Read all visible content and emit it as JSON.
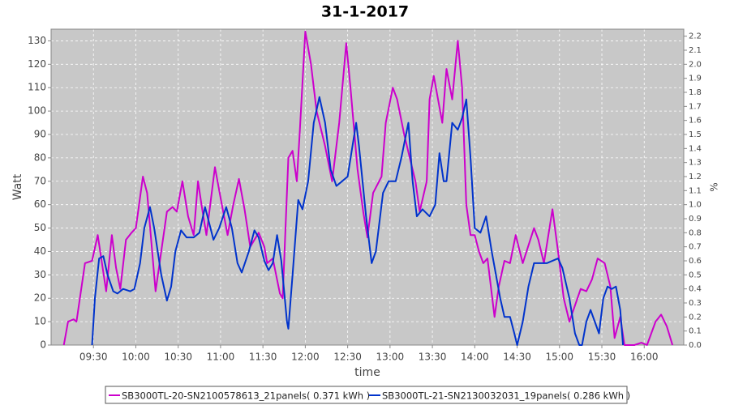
{
  "chart_data": {
    "type": "line",
    "title": "31-1-2017",
    "xlabel": "time",
    "ylabel": "Watt",
    "y2label": "%",
    "xlim": [
      "09:00",
      "16:28"
    ],
    "xticks": [
      "09:30",
      "10:00",
      "10:30",
      "11:00",
      "11:30",
      "12:00",
      "12:30",
      "13:00",
      "13:30",
      "14:00",
      "14:30",
      "15:00",
      "15:30",
      "16:00"
    ],
    "ylim": [
      0,
      135
    ],
    "yticks": [
      0,
      10,
      20,
      30,
      40,
      50,
      60,
      70,
      80,
      90,
      100,
      110,
      120,
      130
    ],
    "y2lim": [
      0,
      2.25
    ],
    "y2ticks": [
      {
        "value": 0,
        "label": "0.0"
      },
      0.1,
      0.2,
      0.3,
      0.4,
      0.5,
      0.6,
      0.7,
      0.8,
      0.9,
      {
        "value": 1,
        "label": "1.0"
      },
      1.1,
      1.2,
      1.3,
      1.4,
      1.5,
      1.6,
      1.7,
      1.8,
      1.9,
      {
        "value": 2,
        "label": "2.0"
      },
      2.1,
      2.2
    ],
    "grid": true,
    "legend": "bottom",
    "series": [
      {
        "name": "SB3000TL-20-SN2100578613_21panels( 0.371 kWh )",
        "color": "#cc00cc",
        "x": [
          "09:09",
          "09:12",
          "09:16",
          "09:18",
          "09:24",
          "09:29",
          "09:33",
          "09:36",
          "09:39",
          "09:43",
          "09:46",
          "09:49",
          "09:53",
          "09:57",
          "10:00",
          "10:05",
          "10:08",
          "10:14",
          "10:18",
          "10:22",
          "10:26",
          "10:29",
          "10:33",
          "10:37",
          "10:41",
          "10:44",
          "10:47",
          "10:50",
          "10:56",
          "11:00",
          "11:05",
          "11:09",
          "11:13",
          "11:17",
          "11:21",
          "11:27",
          "11:31",
          "11:33",
          "11:37",
          "11:42",
          "11:44",
          "11:48",
          "11:51",
          "11:54",
          "11:56",
          "12:00",
          "12:04",
          "12:08",
          "12:14",
          "12:19",
          "12:24",
          "12:29",
          "12:32",
          "12:37",
          "12:41",
          "12:44",
          "12:48",
          "12:54",
          "12:57",
          "13:02",
          "13:05",
          "13:10",
          "13:14",
          "13:18",
          "13:21",
          "13:26",
          "13:28",
          "13:31",
          "13:37",
          "13:40",
          "13:44",
          "13:48",
          "13:51",
          "13:54",
          "13:57",
          "14:00",
          "14:03",
          "14:06",
          "14:09",
          "14:14",
          "14:17",
          "14:21",
          "14:25",
          "14:29",
          "14:34",
          "14:42",
          "14:45",
          "14:49",
          "14:55",
          "14:59",
          "15:03",
          "15:07",
          "15:15",
          "15:19",
          "15:23",
          "15:27",
          "15:32",
          "15:36",
          "15:39",
          "15:43",
          "15:46",
          "15:53",
          "15:58",
          "16:02",
          "16:08",
          "16:12",
          "16:16",
          "16:20"
        ],
        "values": [
          0,
          10,
          11,
          10,
          35,
          36,
          47,
          35,
          23,
          47,
          33,
          24,
          45,
          48,
          50,
          72,
          65,
          23,
          40,
          57,
          59,
          57,
          70,
          55,
          47,
          70,
          58,
          47,
          76,
          63,
          47,
          60,
          71,
          58,
          42,
          48,
          42,
          35,
          37,
          22,
          20,
          80,
          83,
          70,
          90,
          134,
          120,
          100,
          85,
          70,
          95,
          129,
          110,
          75,
          57,
          46,
          65,
          72,
          95,
          110,
          105,
          90,
          80,
          70,
          57,
          70,
          105,
          115,
          95,
          118,
          105,
          130,
          110,
          60,
          47,
          47,
          40,
          35,
          37,
          12,
          25,
          36,
          35,
          47,
          35,
          50,
          45,
          35,
          58,
          40,
          20,
          10,
          24,
          23,
          28,
          37,
          35,
          25,
          3,
          12,
          0,
          0,
          1,
          0,
          10,
          13,
          8,
          0
        ]
      },
      {
        "name": "SB3000TL-21-SN2130032031_19panels( 0.286 kWh )",
        "color": "#0033cc",
        "x": [
          "09:29",
          "09:31",
          "09:34",
          "09:37",
          "09:40",
          "09:44",
          "09:47",
          "09:51",
          "09:56",
          "09:59",
          "10:03",
          "10:06",
          "10:10",
          "10:13",
          "10:18",
          "10:22",
          "10:25",
          "10:28",
          "10:32",
          "10:36",
          "10:41",
          "10:45",
          "10:49",
          "10:52",
          "10:55",
          "10:59",
          "11:04",
          "11:08",
          "11:12",
          "11:15",
          "11:20",
          "11:24",
          "11:27",
          "11:31",
          "11:34",
          "11:37",
          "11:40",
          "11:43",
          "11:47",
          "11:48",
          "11:51",
          "11:55",
          "11:58",
          "12:02",
          "12:06",
          "12:10",
          "12:14",
          "12:18",
          "12:22",
          "12:26",
          "12:30",
          "12:36",
          "12:38",
          "12:43",
          "12:47",
          "12:50",
          "12:55",
          "12:59",
          "13:04",
          "13:08",
          "13:13",
          "13:16",
          "13:19",
          "13:23",
          "13:28",
          "13:32",
          "13:35",
          "13:38",
          "13:40",
          "13:44",
          "13:48",
          "13:51",
          "13:54",
          "13:57",
          "14:00",
          "14:04",
          "14:08",
          "14:12",
          "14:18",
          "14:21",
          "14:25",
          "14:28",
          "14:30",
          "14:34",
          "14:38",
          "14:42",
          "14:51",
          "14:59",
          "15:02",
          "15:07",
          "15:11",
          "15:14",
          "15:16",
          "15:19",
          "15:22",
          "15:25",
          "15:28",
          "15:31",
          "15:34",
          "15:37",
          "15:40",
          "15:43",
          "15:45"
        ],
        "values": [
          0,
          20,
          37,
          38,
          30,
          23,
          22,
          24,
          23,
          24,
          35,
          50,
          59,
          50,
          30,
          19,
          25,
          40,
          49,
          46,
          46,
          48,
          59,
          52,
          45,
          50,
          59,
          50,
          35,
          31,
          40,
          49,
          46,
          36,
          32,
          35,
          47,
          36,
          10,
          7,
          30,
          62,
          58,
          70,
          95,
          106,
          95,
          75,
          68,
          70,
          72,
          95,
          85,
          55,
          35,
          40,
          65,
          70,
          70,
          80,
          95,
          70,
          55,
          58,
          55,
          60,
          82,
          70,
          70,
          95,
          92,
          97,
          105,
          80,
          50,
          48,
          55,
          40,
          20,
          12,
          12,
          5,
          0,
          10,
          25,
          35,
          35,
          37,
          33,
          20,
          5,
          0,
          0,
          10,
          15,
          10,
          5,
          20,
          25,
          24,
          25,
          15,
          0
        ]
      }
    ]
  }
}
